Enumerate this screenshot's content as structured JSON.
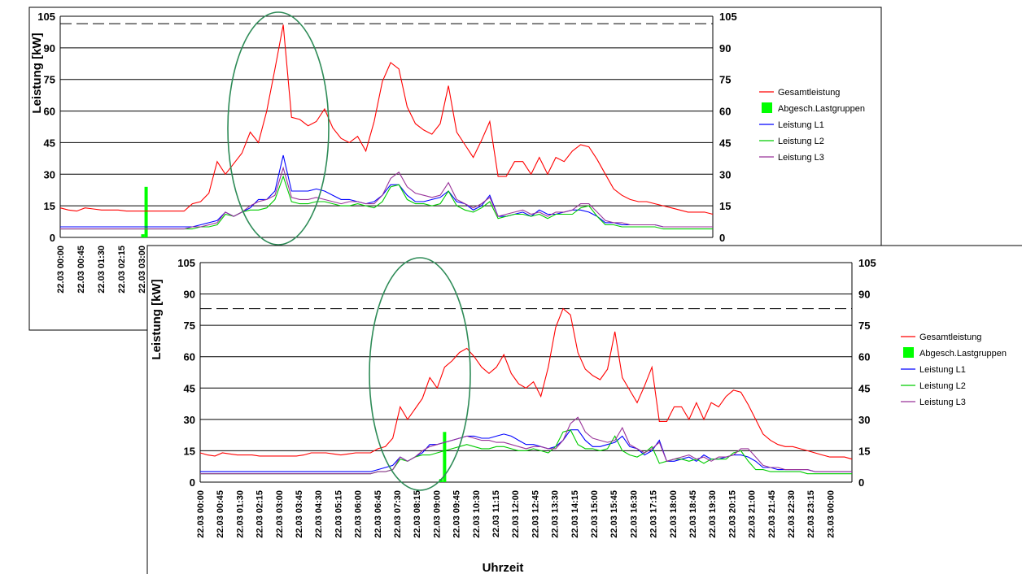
{
  "chart_data": [
    {
      "type": "line",
      "ylabel": "Leistung [kW]",
      "xlabel": "",
      "ylim": [
        0,
        105
      ],
      "yticks": [
        0,
        15,
        30,
        45,
        60,
        75,
        90,
        105
      ],
      "y_right_axis": true,
      "grid": true,
      "legend": "right",
      "limit_line": 101.5,
      "x_tick_labels": [
        "22.03 00:00",
        "22.03 00:45",
        "22.03 01:30",
        "22.03 02:15",
        "22.03 03:00"
      ],
      "legend_entries": [
        "Gesamtleistung",
        "Abgesch.Lastgruppen",
        "Leistung L1",
        "Leistung L2",
        "Leistung L3"
      ],
      "bars": [
        {
          "x": 10.0,
          "value": 1.5
        },
        {
          "x": 10.4,
          "value": 24
        }
      ],
      "series": [
        {
          "name": "Gesamtleistung",
          "color": "#ff0000",
          "values": [
            14,
            13,
            12.5,
            14,
            13.5,
            13,
            13,
            13,
            12.5,
            12.5,
            12.5,
            12.5,
            12.5,
            12.5,
            12.5,
            12.5,
            16,
            17,
            21,
            36,
            30,
            35,
            40,
            50,
            45,
            60,
            80,
            101,
            57,
            56,
            53,
            55,
            61,
            52,
            47,
            45,
            48,
            41,
            55,
            74,
            83,
            80,
            62,
            54,
            51,
            49,
            54,
            72,
            50,
            44,
            38,
            46,
            55,
            29,
            29,
            36,
            36,
            30,
            38,
            30,
            38,
            36,
            41,
            44,
            43,
            37,
            30,
            23,
            20,
            18,
            17,
            17,
            16,
            15,
            14,
            13,
            12,
            12,
            12,
            11
          ]
        },
        {
          "name": "Leistung L1",
          "color": "#0000ff",
          "values": [
            5,
            5,
            5,
            5,
            5,
            5,
            5,
            5,
            5,
            5,
            5,
            5,
            5,
            5,
            5,
            5,
            5,
            6,
            7,
            8,
            12,
            10,
            12,
            14,
            18,
            18,
            22,
            39,
            22,
            22,
            22,
            23,
            22,
            20,
            18,
            18,
            17,
            16,
            17,
            20,
            25,
            25,
            20,
            17,
            17,
            18,
            19,
            22,
            17,
            16,
            13,
            15,
            20,
            10,
            10,
            11,
            12,
            10,
            13,
            11,
            11,
            12,
            13,
            13,
            12,
            10,
            7,
            7,
            6,
            6,
            6,
            6,
            6,
            5,
            5,
            5,
            5,
            5,
            5,
            5
          ]
        },
        {
          "name": "Leistung L2",
          "color": "#00cc00",
          "values": [
            4,
            4,
            4,
            4,
            4,
            4,
            4,
            4,
            4,
            4,
            4,
            4,
            4,
            4,
            4,
            4,
            4,
            5,
            5,
            6,
            11,
            10,
            12,
            13,
            13,
            14,
            18,
            29,
            17,
            16,
            16,
            17,
            17,
            16,
            15,
            15,
            16,
            15,
            14,
            17,
            24,
            25,
            18,
            16,
            16,
            15,
            16,
            22,
            15,
            13,
            12,
            14,
            17,
            9,
            10,
            11,
            11,
            10,
            11,
            9,
            11,
            11,
            11,
            14,
            15,
            10,
            6,
            6,
            5,
            5,
            5,
            5,
            5,
            4,
            4,
            4,
            4,
            4,
            4,
            4
          ]
        },
        {
          "name": "Leistung L3",
          "color": "#993399",
          "values": [
            4,
            4,
            4,
            4,
            4,
            4,
            4,
            4,
            4,
            4,
            4,
            4,
            4,
            4,
            4,
            4,
            5,
            5,
            6,
            7,
            12,
            10,
            12,
            15,
            17,
            18,
            20,
            33,
            19,
            18,
            18,
            19,
            18,
            17,
            16,
            17,
            17,
            16,
            16,
            20,
            28,
            31,
            24,
            21,
            20,
            19,
            20,
            26,
            18,
            16,
            14,
            16,
            19,
            10,
            11,
            12,
            13,
            11,
            12,
            10,
            12,
            12,
            13,
            16,
            16,
            12,
            8,
            7,
            7,
            6,
            6,
            6,
            6,
            5,
            5,
            5,
            5,
            5,
            5,
            5
          ]
        }
      ]
    },
    {
      "type": "line",
      "ylabel": "Leistung [kW]",
      "xlabel": "Uhrzeit",
      "ylim": [
        0,
        105
      ],
      "yticks": [
        0,
        15,
        30,
        45,
        60,
        75,
        90,
        105
      ],
      "y_right_axis": true,
      "grid": true,
      "legend": "right",
      "limit_line": 83,
      "x_tick_labels": [
        "22.03 00:00",
        "22.03 00:45",
        "22.03 01:30",
        "22.03 02:15",
        "22.03 03:00",
        "22.03 03:45",
        "22.03 04:30",
        "22.03 05:15",
        "22.03 06:00",
        "22.03 06:45",
        "22.03 07:30",
        "22.03 08:15",
        "22.03 09:00",
        "22.03 09:45",
        "22.03 10:30",
        "22.03 11:15",
        "22.03 12:00",
        "22.03 12:45",
        "22.03 13:30",
        "22.03 14:15",
        "22.03 15:00",
        "22.03 15:45",
        "22.03 16:30",
        "22.03 17:15",
        "22.03 18:00",
        "22.03 18:45",
        "22.03 19:30",
        "22.03 20:15",
        "22.03 21:00",
        "22.03 21:45",
        "22.03 22:30",
        "22.03 23:15",
        "23.03 00:00"
      ],
      "legend_entries": [
        "Gesamtleistung",
        "Abgesch.Lastgruppen",
        "Leistung L1",
        "Leistung L2",
        "Leistung L3"
      ],
      "bars": [
        {
          "x": 32.5,
          "value": 1.5
        },
        {
          "x": 33.0,
          "value": 24
        }
      ],
      "series": [
        {
          "name": "Gesamtleistung",
          "color": "#ff0000",
          "values": [
            14,
            13,
            12.5,
            14,
            13.5,
            13,
            13,
            13,
            12.5,
            12.5,
            12.5,
            12.5,
            12.5,
            12.5,
            13,
            14,
            14,
            14,
            13.5,
            13,
            13.5,
            14,
            14,
            14,
            16,
            17,
            21,
            36,
            30,
            35,
            40,
            50,
            45,
            55,
            58,
            62,
            64,
            60,
            55,
            52,
            55,
            61,
            52,
            47,
            45,
            48,
            41,
            55,
            74,
            83,
            80,
            62,
            54,
            51,
            49,
            54,
            72,
            50,
            44,
            38,
            46,
            55,
            29,
            29,
            36,
            36,
            30,
            38,
            30,
            38,
            36,
            41,
            44,
            43,
            37,
            30,
            23,
            20,
            18,
            17,
            17,
            16,
            15,
            14,
            13,
            12,
            12,
            12,
            11
          ]
        },
        {
          "name": "Leistung L1",
          "color": "#0000ff",
          "values": [
            5,
            5,
            5,
            5,
            5,
            5,
            5,
            5,
            5,
            5,
            5,
            5,
            5,
            5,
            5,
            5,
            5,
            5,
            5,
            5,
            5,
            5,
            5,
            5,
            6,
            7,
            8,
            12,
            10,
            12,
            14,
            18,
            18,
            19,
            20,
            21,
            22,
            22,
            21,
            21,
            22,
            23,
            22,
            20,
            18,
            18,
            17,
            16,
            17,
            20,
            25,
            25,
            20,
            17,
            17,
            18,
            19,
            22,
            17,
            16,
            13,
            15,
            20,
            10,
            10,
            11,
            12,
            10,
            13,
            11,
            11,
            12,
            13,
            13,
            12,
            10,
            7,
            7,
            6,
            6,
            6,
            6,
            6,
            5,
            5,
            5,
            5,
            5,
            5
          ]
        },
        {
          "name": "Leistung L2",
          "color": "#00cc00",
          "values": [
            4,
            4,
            4,
            4,
            4,
            4,
            4,
            4,
            4,
            4,
            4,
            4,
            4,
            4,
            4,
            4,
            4,
            4,
            4,
            4,
            4,
            4,
            4,
            4,
            5,
            5,
            6,
            11,
            10,
            12,
            13,
            13,
            14,
            15,
            16,
            17,
            18,
            17,
            16,
            16,
            17,
            17,
            16,
            15,
            15,
            16,
            15,
            14,
            17,
            24,
            25,
            18,
            16,
            16,
            15,
            16,
            22,
            15,
            13,
            12,
            14,
            17,
            9,
            10,
            11,
            11,
            10,
            11,
            9,
            11,
            11,
            11,
            14,
            15,
            10,
            6,
            6,
            5,
            5,
            5,
            5,
            5,
            4,
            4,
            4,
            4,
            4,
            4,
            4
          ]
        },
        {
          "name": "Leistung L3",
          "color": "#993399",
          "values": [
            4,
            4,
            4,
            4,
            4,
            4,
            4,
            4,
            4,
            4,
            4,
            4,
            4,
            4,
            4,
            4,
            4,
            4,
            4,
            4,
            4,
            4,
            4,
            4,
            5,
            5,
            6,
            12,
            10,
            12,
            15,
            17,
            18,
            19,
            20,
            21,
            22,
            21,
            20,
            20,
            19,
            19,
            18,
            17,
            16,
            17,
            17,
            16,
            16,
            20,
            28,
            31,
            24,
            21,
            20,
            19,
            20,
            26,
            18,
            16,
            14,
            16,
            19,
            10,
            11,
            12,
            13,
            11,
            12,
            10,
            12,
            12,
            13,
            16,
            16,
            12,
            8,
            7,
            7,
            6,
            6,
            6,
            6,
            5,
            5,
            5,
            5,
            5,
            5
          ]
        }
      ]
    }
  ]
}
